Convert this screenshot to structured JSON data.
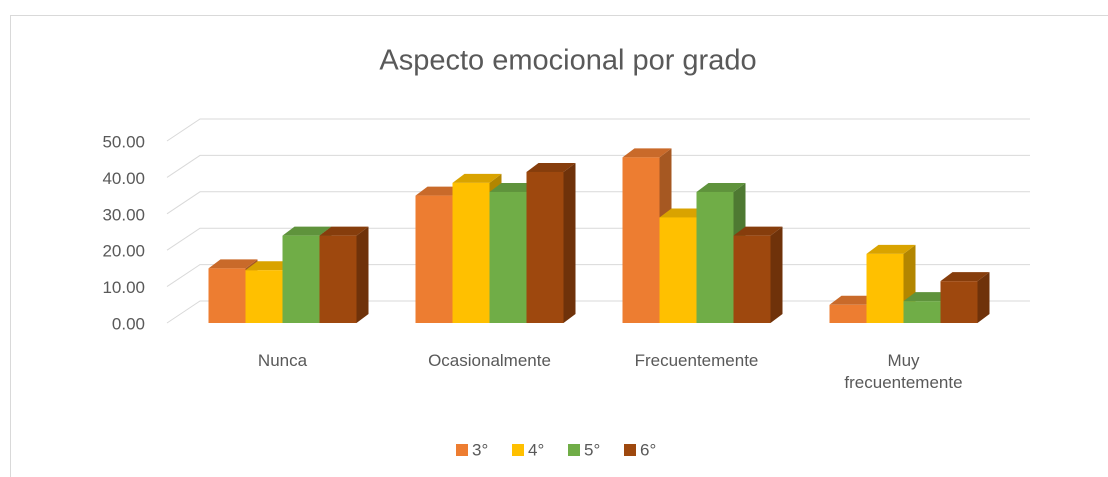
{
  "chart_data": {
    "type": "bar3d",
    "title": "Aspecto emocional por grado",
    "categories": [
      "Nunca",
      "Ocasionalmente",
      "Frecuentemente",
      "Muy frecuentemente"
    ],
    "series": [
      {
        "name": "3°",
        "color": "#ed7d31",
        "values": [
          15,
          35,
          45.5,
          5
        ]
      },
      {
        "name": "4°",
        "color": "#ffc000",
        "values": [
          14.5,
          38.5,
          29,
          19
        ]
      },
      {
        "name": "5°",
        "color": "#70ad47",
        "values": [
          24,
          36,
          36,
          6
        ]
      },
      {
        "name": "6°",
        "color": "#9e480e",
        "values": [
          24,
          41.5,
          24,
          11.5
        ]
      }
    ],
    "ylim": [
      0,
      50
    ],
    "yticks": [
      {
        "value": 0,
        "label": "0.00"
      },
      {
        "value": 10,
        "label": "10.00"
      },
      {
        "value": 20,
        "label": "20.00"
      },
      {
        "value": 30,
        "label": "30.00"
      },
      {
        "value": 40,
        "label": "40.00"
      },
      {
        "value": 50,
        "label": "50.00"
      }
    ],
    "grid": true,
    "legend": "bottom"
  }
}
